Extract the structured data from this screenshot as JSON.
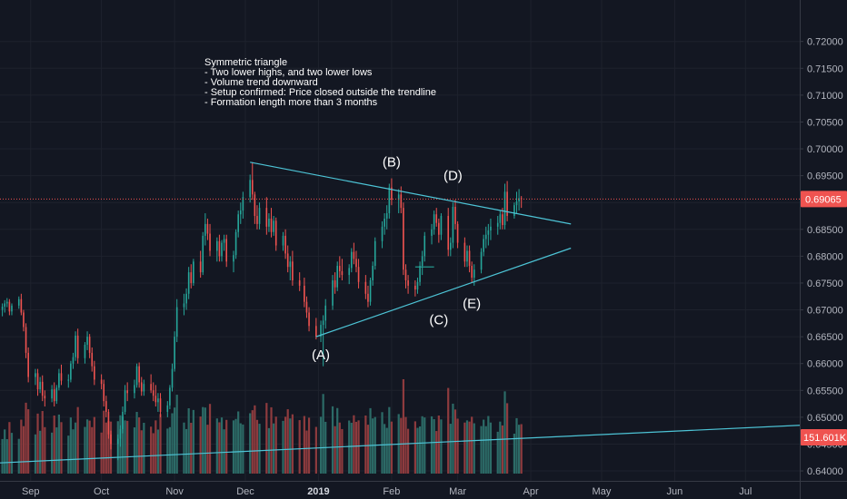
{
  "chart_data": {
    "type": "candlestick",
    "annotation": {
      "lines": [
        "Symmetric triangle",
        "- Two  lower highs, and two lower lows",
        "- Volume trend downward",
        "- Setup confirmed: Price closed outside the trendline",
        "- Formation length more than 3 months"
      ]
    },
    "price_axis": {
      "ylim": [
        0.6395,
        0.7235
      ],
      "ticks": [
        "0.72000",
        "0.71500",
        "0.71000",
        "0.70500",
        "0.70000",
        "0.69500",
        "0.69000",
        "0.68500",
        "0.68000",
        "0.67500",
        "0.67000",
        "0.66500",
        "0.66000",
        "0.65500",
        "0.65000",
        "0.64500",
        "0.64000"
      ]
    },
    "time_axis": {
      "labels": [
        {
          "label": "Sep",
          "date": "2018-09-01",
          "bold": false
        },
        {
          "label": "Oct",
          "date": "2018-10-01",
          "bold": false
        },
        {
          "label": "Nov",
          "date": "2018-11-01",
          "bold": false
        },
        {
          "label": "Dec",
          "date": "2018-12-01",
          "bold": false
        },
        {
          "label": "2019",
          "date": "2019-01-01",
          "bold": true
        },
        {
          "label": "Feb",
          "date": "2019-02-01",
          "bold": false
        },
        {
          "label": "Mar",
          "date": "2019-03-01",
          "bold": false
        },
        {
          "label": "Apr",
          "date": "2019-04-01",
          "bold": false
        },
        {
          "label": "May",
          "date": "2019-05-01",
          "bold": false
        },
        {
          "label": "Jun",
          "date": "2019-06-01",
          "bold": false
        },
        {
          "label": "Jul",
          "date": "2019-07-01",
          "bold": false
        }
      ],
      "range": [
        "2018-08-19",
        "2019-07-24"
      ]
    },
    "last_price": {
      "value": 0.69065,
      "label": "0.69065"
    },
    "volume_badge": {
      "label": "151.601K",
      "value": 151.601
    },
    "volume_range": [
      0,
      420
    ],
    "candles": [
      [
        "2018-08-20",
        0.67,
        0.6712,
        0.6688,
        0.6706
      ],
      [
        "2018-08-21",
        0.6706,
        0.6718,
        0.6695,
        0.6712
      ],
      [
        "2018-08-22",
        0.6712,
        0.6722,
        0.6705,
        0.6715
      ],
      [
        "2018-08-23",
        0.6715,
        0.672,
        0.669,
        0.6697
      ],
      [
        "2018-08-24",
        0.6697,
        0.6712,
        0.669,
        0.6708
      ],
      [
        "2018-08-27",
        0.6708,
        0.6725,
        0.6702,
        0.672
      ],
      [
        "2018-08-28",
        0.672,
        0.673,
        0.669,
        0.6695
      ],
      [
        "2018-08-29",
        0.6695,
        0.67,
        0.666,
        0.6668
      ],
      [
        "2018-08-30",
        0.6668,
        0.6675,
        0.661,
        0.662
      ],
      [
        "2018-08-31",
        0.662,
        0.663,
        0.6565,
        0.6575
      ],
      [
        "2018-09-03",
        0.6575,
        0.659,
        0.656,
        0.6582
      ],
      [
        "2018-09-04",
        0.6582,
        0.659,
        0.654,
        0.6552
      ],
      [
        "2018-09-05",
        0.6552,
        0.6575,
        0.6545,
        0.6566
      ],
      [
        "2018-09-06",
        0.6566,
        0.6578,
        0.653,
        0.654
      ],
      [
        "2018-09-07",
        0.654,
        0.655,
        0.652,
        0.6535
      ],
      [
        "2018-09-10",
        0.6535,
        0.656,
        0.6528,
        0.6552
      ],
      [
        "2018-09-11",
        0.6552,
        0.6565,
        0.652,
        0.653
      ],
      [
        "2018-09-12",
        0.653,
        0.656,
        0.6525,
        0.6555
      ],
      [
        "2018-09-13",
        0.6555,
        0.659,
        0.655,
        0.6582
      ],
      [
        "2018-09-14",
        0.6582,
        0.6598,
        0.656,
        0.6568
      ],
      [
        "2018-09-17",
        0.6568,
        0.658,
        0.6555,
        0.657
      ],
      [
        "2018-09-18",
        0.657,
        0.6605,
        0.6565,
        0.66
      ],
      [
        "2018-09-19",
        0.66,
        0.662,
        0.659,
        0.6612
      ],
      [
        "2018-09-20",
        0.6612,
        0.666,
        0.6605,
        0.6652
      ],
      [
        "2018-09-21",
        0.6652,
        0.6665,
        0.66,
        0.661
      ],
      [
        "2018-09-24",
        0.661,
        0.664,
        0.66,
        0.6635
      ],
      [
        "2018-09-25",
        0.6635,
        0.666,
        0.6625,
        0.665
      ],
      [
        "2018-09-26",
        0.665,
        0.6655,
        0.661,
        0.662
      ],
      [
        "2018-09-27",
        0.662,
        0.663,
        0.6585,
        0.6595
      ],
      [
        "2018-09-28",
        0.6595,
        0.6605,
        0.656,
        0.657
      ],
      [
        "2018-10-01",
        0.657,
        0.658,
        0.6552,
        0.6562
      ],
      [
        "2018-10-02",
        0.6562,
        0.657,
        0.652,
        0.653
      ],
      [
        "2018-10-03",
        0.653,
        0.654,
        0.65,
        0.651
      ],
      [
        "2018-10-04",
        0.651,
        0.6515,
        0.646,
        0.6468
      ],
      [
        "2018-10-05",
        0.6468,
        0.6475,
        0.644,
        0.645
      ],
      [
        "2018-10-08",
        0.645,
        0.6468,
        0.642,
        0.646
      ],
      [
        "2018-10-09",
        0.646,
        0.6485,
        0.6445,
        0.6478
      ],
      [
        "2018-10-10",
        0.6478,
        0.652,
        0.647,
        0.651
      ],
      [
        "2018-10-11",
        0.651,
        0.656,
        0.6505,
        0.655
      ],
      [
        "2018-10-12",
        0.655,
        0.6565,
        0.653,
        0.6545
      ],
      [
        "2018-10-15",
        0.6545,
        0.657,
        0.6535,
        0.656
      ],
      [
        "2018-10-16",
        0.656,
        0.66,
        0.6555,
        0.6595
      ],
      [
        "2018-10-17",
        0.6595,
        0.6602,
        0.6555,
        0.6565
      ],
      [
        "2018-10-18",
        0.6565,
        0.6575,
        0.654,
        0.6548
      ],
      [
        "2018-10-19",
        0.6548,
        0.657,
        0.654,
        0.6562
      ],
      [
        "2018-10-22",
        0.6562,
        0.658,
        0.6545,
        0.655
      ],
      [
        "2018-10-23",
        0.655,
        0.6565,
        0.653,
        0.654
      ],
      [
        "2018-10-24",
        0.654,
        0.656,
        0.652,
        0.6528
      ],
      [
        "2018-10-25",
        0.6528,
        0.6545,
        0.651,
        0.6535
      ],
      [
        "2018-10-26",
        0.6535,
        0.6545,
        0.65,
        0.651
      ],
      [
        "2018-10-29",
        0.651,
        0.653,
        0.65,
        0.6522
      ],
      [
        "2018-10-30",
        0.6522,
        0.656,
        0.6515,
        0.6555
      ],
      [
        "2018-10-31",
        0.6555,
        0.66,
        0.6548,
        0.659
      ],
      [
        "2018-11-01",
        0.659,
        0.666,
        0.6585,
        0.665
      ],
      [
        "2018-11-02",
        0.665,
        0.672,
        0.664,
        0.6705
      ],
      [
        "2018-11-05",
        0.6705,
        0.673,
        0.669,
        0.6712
      ],
      [
        "2018-11-06",
        0.6712,
        0.674,
        0.67,
        0.673
      ],
      [
        "2018-11-07",
        0.673,
        0.678,
        0.672,
        0.677
      ],
      [
        "2018-11-08",
        0.677,
        0.6785,
        0.674,
        0.675
      ],
      [
        "2018-11-09",
        0.675,
        0.6795,
        0.6745,
        0.679
      ],
      [
        "2018-11-12",
        0.679,
        0.681,
        0.676,
        0.677
      ],
      [
        "2018-11-13",
        0.677,
        0.6845,
        0.6765,
        0.6838
      ],
      [
        "2018-11-14",
        0.6838,
        0.688,
        0.682,
        0.686
      ],
      [
        "2018-11-15",
        0.686,
        0.687,
        0.683,
        0.6842
      ],
      [
        "2018-11-16",
        0.6842,
        0.686,
        0.68,
        0.681
      ],
      [
        "2018-11-19",
        0.681,
        0.6835,
        0.679,
        0.6828
      ],
      [
        "2018-11-20",
        0.6828,
        0.684,
        0.679,
        0.68
      ],
      [
        "2018-11-21",
        0.68,
        0.683,
        0.679,
        0.6825
      ],
      [
        "2018-11-22",
        0.6825,
        0.684,
        0.681,
        0.6832
      ],
      [
        "2018-11-23",
        0.6832,
        0.684,
        0.678,
        0.679
      ],
      [
        "2018-11-26",
        0.679,
        0.681,
        0.677,
        0.6802
      ],
      [
        "2018-11-27",
        0.6802,
        0.685,
        0.6795,
        0.6845
      ],
      [
        "2018-11-28",
        0.6845,
        0.6885,
        0.6835,
        0.6878
      ],
      [
        "2018-11-29",
        0.6878,
        0.69,
        0.686,
        0.6885
      ],
      [
        "2018-11-30",
        0.6885,
        0.692,
        0.687,
        0.691
      ],
      [
        "2018-12-03",
        0.691,
        0.6952,
        0.69,
        0.6942
      ],
      [
        "2018-12-04",
        0.6942,
        0.6975,
        0.6905,
        0.6915
      ],
      [
        "2018-12-05",
        0.6915,
        0.692,
        0.686,
        0.6875
      ],
      [
        "2018-12-06",
        0.6875,
        0.6895,
        0.685,
        0.686
      ],
      [
        "2018-12-07",
        0.686,
        0.69,
        0.685,
        0.689
      ],
      [
        "2018-12-10",
        0.689,
        0.691,
        0.684,
        0.6855
      ],
      [
        "2018-12-11",
        0.6855,
        0.688,
        0.6845,
        0.687
      ],
      [
        "2018-12-12",
        0.687,
        0.689,
        0.6835,
        0.6845
      ],
      [
        "2018-12-13",
        0.6845,
        0.6875,
        0.6838,
        0.6866
      ],
      [
        "2018-12-14",
        0.6866,
        0.6872,
        0.681,
        0.682
      ],
      [
        "2018-12-17",
        0.682,
        0.6845,
        0.681,
        0.6838
      ],
      [
        "2018-12-18",
        0.6838,
        0.685,
        0.6795,
        0.6805
      ],
      [
        "2018-12-19",
        0.6805,
        0.682,
        0.677,
        0.678
      ],
      [
        "2018-12-20",
        0.678,
        0.68,
        0.6755,
        0.679
      ],
      [
        "2018-12-21",
        0.679,
        0.681,
        0.6745,
        0.6755
      ],
      [
        "2018-12-24",
        0.6755,
        0.677,
        0.6735,
        0.6745
      ],
      [
        "2018-12-26",
        0.6745,
        0.676,
        0.6705,
        0.6715
      ],
      [
        "2018-12-27",
        0.6715,
        0.6725,
        0.6685,
        0.6695
      ],
      [
        "2018-12-28",
        0.6695,
        0.6705,
        0.666,
        0.667
      ],
      [
        "2018-12-31",
        0.667,
        0.6685,
        0.6645,
        0.665
      ],
      [
        "2019-01-02",
        0.665,
        0.668,
        0.664,
        0.6672
      ],
      [
        "2019-01-03",
        0.6672,
        0.669,
        0.6595,
        0.668
      ],
      [
        "2019-01-04",
        0.668,
        0.672,
        0.6665,
        0.6708
      ],
      [
        "2019-01-07",
        0.6708,
        0.6765,
        0.67,
        0.6755
      ],
      [
        "2019-01-08",
        0.6755,
        0.677,
        0.673,
        0.6742
      ],
      [
        "2019-01-09",
        0.6742,
        0.679,
        0.6735,
        0.6782
      ],
      [
        "2019-01-10",
        0.6782,
        0.68,
        0.676,
        0.6772
      ],
      [
        "2019-01-11",
        0.6772,
        0.6795,
        0.6755,
        0.6765
      ],
      [
        "2019-01-14",
        0.6765,
        0.6785,
        0.6748,
        0.6778
      ],
      [
        "2019-01-15",
        0.6778,
        0.6815,
        0.677,
        0.6808
      ],
      [
        "2019-01-16",
        0.6808,
        0.6825,
        0.6785,
        0.6795
      ],
      [
        "2019-01-17",
        0.6795,
        0.681,
        0.677,
        0.678
      ],
      [
        "2019-01-18",
        0.678,
        0.6795,
        0.674,
        0.6752
      ],
      [
        "2019-01-21",
        0.6752,
        0.6765,
        0.672,
        0.673
      ],
      [
        "2019-01-22",
        0.673,
        0.6745,
        0.6705,
        0.6715
      ],
      [
        "2019-01-23",
        0.6715,
        0.676,
        0.6708,
        0.6755
      ],
      [
        "2019-01-24",
        0.6755,
        0.679,
        0.6745,
        0.6782
      ],
      [
        "2019-01-25",
        0.6782,
        0.6835,
        0.6775,
        0.6828
      ],
      [
        "2019-01-28",
        0.6828,
        0.6865,
        0.6815,
        0.6855
      ],
      [
        "2019-01-29",
        0.6855,
        0.688,
        0.684,
        0.687
      ],
      [
        "2019-01-30",
        0.687,
        0.6895,
        0.685,
        0.688
      ],
      [
        "2019-01-31",
        0.688,
        0.6935,
        0.687,
        0.6928
      ],
      [
        "2019-02-01",
        0.6928,
        0.6945,
        0.6895,
        0.6905
      ],
      [
        "2019-02-04",
        0.6905,
        0.6925,
        0.688,
        0.6915
      ],
      [
        "2019-02-05",
        0.6915,
        0.693,
        0.688,
        0.689
      ],
      [
        "2019-02-06",
        0.689,
        0.69,
        0.6765,
        0.6775
      ],
      [
        "2019-02-07",
        0.6775,
        0.6785,
        0.674,
        0.6755
      ],
      [
        "2019-02-08",
        0.6755,
        0.6765,
        0.673,
        0.6745
      ],
      [
        "2019-02-11",
        0.6745,
        0.6755,
        0.6725,
        0.6738
      ],
      [
        "2019-02-12",
        0.6738,
        0.676,
        0.673,
        0.6752
      ],
      [
        "2019-02-13",
        0.6752,
        0.679,
        0.6745,
        0.6782
      ],
      [
        "2019-02-14",
        0.6782,
        0.681,
        0.6765,
        0.68
      ],
      [
        "2019-02-15",
        0.68,
        0.6845,
        0.679,
        0.6838
      ],
      [
        "2019-02-18",
        0.6838,
        0.686,
        0.6822,
        0.685
      ],
      [
        "2019-02-19",
        0.685,
        0.6885,
        0.684,
        0.6878
      ],
      [
        "2019-02-20",
        0.6878,
        0.689,
        0.6855,
        0.6862
      ],
      [
        "2019-02-21",
        0.6862,
        0.687,
        0.6825,
        0.684
      ],
      [
        "2019-02-22",
        0.684,
        0.688,
        0.683,
        0.6875
      ],
      [
        "2019-02-25",
        0.6875,
        0.689,
        0.68,
        0.6812
      ],
      [
        "2019-02-26",
        0.6812,
        0.6835,
        0.68,
        0.6825
      ],
      [
        "2019-02-27",
        0.6825,
        0.69,
        0.6815,
        0.6892
      ],
      [
        "2019-02-28",
        0.6892,
        0.6905,
        0.685,
        0.686
      ],
      [
        "2019-03-01",
        0.686,
        0.6865,
        0.6815,
        0.6825
      ],
      [
        "2019-03-04",
        0.6825,
        0.6835,
        0.678,
        0.679
      ],
      [
        "2019-03-05",
        0.679,
        0.682,
        0.678,
        0.681
      ],
      [
        "2019-03-06",
        0.681,
        0.682,
        0.677,
        0.6782
      ],
      [
        "2019-03-07",
        0.6782,
        0.679,
        0.675,
        0.676
      ],
      [
        "2019-03-08",
        0.676,
        0.6785,
        0.6745,
        0.6775
      ],
      [
        "2019-03-11",
        0.6775,
        0.6815,
        0.6768,
        0.6808
      ],
      [
        "2019-03-12",
        0.6808,
        0.684,
        0.68,
        0.6832
      ],
      [
        "2019-03-13",
        0.6832,
        0.6855,
        0.6815,
        0.684
      ],
      [
        "2019-03-14",
        0.684,
        0.686,
        0.682,
        0.6848
      ],
      [
        "2019-03-15",
        0.6848,
        0.687,
        0.683,
        0.6855
      ],
      [
        "2019-03-18",
        0.6855,
        0.6875,
        0.684,
        0.6862
      ],
      [
        "2019-03-19",
        0.6862,
        0.6885,
        0.685,
        0.6878
      ],
      [
        "2019-03-20",
        0.6878,
        0.689,
        0.685,
        0.6858
      ],
      [
        "2019-03-21",
        0.6858,
        0.6935,
        0.685,
        0.692
      ],
      [
        "2019-03-22",
        0.692,
        0.694,
        0.6865,
        0.6875
      ],
      [
        "2019-03-25",
        0.6875,
        0.69,
        0.687,
        0.6895
      ],
      [
        "2019-03-26",
        0.6895,
        0.692,
        0.688,
        0.6902
      ],
      [
        "2019-03-27",
        0.6902,
        0.6925,
        0.6885,
        0.6908
      ],
      [
        "2019-03-28",
        0.6908,
        0.6912,
        0.689,
        0.69065
      ]
    ],
    "trendlines": [
      {
        "from": [
          "2018-12-03",
          0.6975
        ],
        "to": [
          "2019-04-18",
          0.686
        ]
      },
      {
        "from": [
          "2018-12-31",
          0.665
        ],
        "to": [
          "2019-04-18",
          0.6815
        ]
      },
      {
        "from": [
          "2018-08-19",
          0.6415
        ],
        "to": [
          "2019-07-24",
          0.6485
        ]
      }
    ],
    "flat_segment": {
      "from": [
        "2019-02-11",
        0.678
      ],
      "to": [
        "2019-02-19",
        0.678
      ]
    },
    "point_labels": [
      {
        "label": "(A)",
        "date": "2019-01-02",
        "price": 0.6625,
        "position": "below"
      },
      {
        "label": "(B)",
        "date": "2019-02-01",
        "price": 0.696,
        "position": "above"
      },
      {
        "label": "(C)",
        "date": "2019-02-21",
        "price": 0.669,
        "position": "below"
      },
      {
        "label": "(D)",
        "date": "2019-02-27",
        "price": 0.6935,
        "position": "above"
      },
      {
        "label": "(E)",
        "date": "2019-03-07",
        "price": 0.672,
        "position": "below"
      }
    ],
    "colors": {
      "background": "#131722",
      "up": "#26a69a",
      "down": "#ef5350",
      "up_volume": "#2c6b67",
      "down_volume": "#8e3b3e",
      "trendline": "#4dc4d6",
      "last_price": "#ef5350",
      "badge_volume": "#ef5350",
      "grid": "#1e222d"
    }
  }
}
